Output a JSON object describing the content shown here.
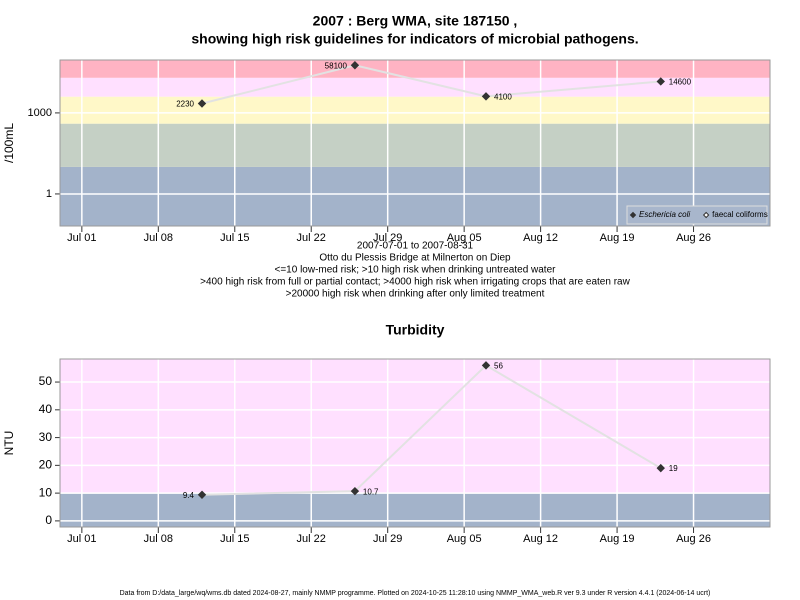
{
  "chart_data": [
    {
      "type": "line",
      "title": "2007 : Berg WMA, site 187150 ,",
      "subtitle": "showing high risk guidelines for indicators of microbial pathogens.",
      "ylabel": "/100mL",
      "log_scale": true,
      "xlim": [
        "2007-06-29",
        "2007-09-02"
      ],
      "xticks": [
        {
          "value": "2007-07-01",
          "label": "Jul 01"
        },
        {
          "value": "2007-07-08",
          "label": "Jul 08"
        },
        {
          "value": "2007-07-15",
          "label": "Jul 15"
        },
        {
          "value": "2007-07-22",
          "label": "Jul 22"
        },
        {
          "value": "2007-07-29",
          "label": "Jul 29"
        },
        {
          "value": "2007-08-05",
          "label": "Aug 05"
        },
        {
          "value": "2007-08-12",
          "label": "Aug 12"
        },
        {
          "value": "2007-08-19",
          "label": "Aug 19"
        },
        {
          "value": "2007-08-26",
          "label": "Aug 26"
        }
      ],
      "ylim": [
        0.065,
        91000
      ],
      "yticks": [
        1,
        1000
      ],
      "grid": true,
      "bands": [
        {
          "to": 10,
          "color": "#a3b3ca"
        },
        {
          "from": 10,
          "to": 400,
          "color": "#c5d0c5"
        },
        {
          "from": 400,
          "to": 4000,
          "color": "#fff8c8"
        },
        {
          "from": 4000,
          "to": 20000,
          "color": "#ffe0ff"
        },
        {
          "from": 20000,
          "color": "#ffb3c3"
        }
      ],
      "x": [
        "2007-07-12",
        "2007-07-26",
        "2007-08-07",
        "2007-08-23"
      ],
      "line_color": "#e2e2e2",
      "series": [
        {
          "name": "Eschericia coli",
          "color": "#333333",
          "marker": "filled",
          "values": [
            2230,
            58100,
            4100,
            14600
          ]
        },
        {
          "name": "faecal coliforms",
          "color": "#333333",
          "marker": "open",
          "values": [
            null,
            null,
            null,
            null
          ]
        }
      ],
      "legend": "bottom right",
      "notes": [
        "2007-07-01 to 2007-08-31",
        "Otto du Plessis Bridge at Milnerton on Diep",
        "<=10 low-med risk; >10 high risk when drinking untreated water",
        ">400 high risk from full or partial contact; >4000 high risk when irrigating crops that are eaten raw",
        ">20000 high risk when drinking after only limited treatment"
      ]
    },
    {
      "type": "line",
      "title": "Turbidity",
      "ylabel": "NTU",
      "log_scale": false,
      "xlim": [
        "2007-06-29",
        "2007-09-02"
      ],
      "xticks": [
        {
          "value": "2007-07-01",
          "label": "Jul 01"
        },
        {
          "value": "2007-07-08",
          "label": "Jul 08"
        },
        {
          "value": "2007-07-15",
          "label": "Jul 15"
        },
        {
          "value": "2007-07-22",
          "label": "Jul 22"
        },
        {
          "value": "2007-07-29",
          "label": "Jul 29"
        },
        {
          "value": "2007-08-05",
          "label": "Aug 05"
        },
        {
          "value": "2007-08-12",
          "label": "Aug 12"
        },
        {
          "value": "2007-08-19",
          "label": "Aug 19"
        },
        {
          "value": "2007-08-26",
          "label": "Aug 26"
        }
      ],
      "ylim": [
        -2.2,
        58.3
      ],
      "yticks": [
        0,
        10,
        20,
        30,
        40,
        50
      ],
      "grid": true,
      "bands": [
        {
          "to": 10,
          "color": "#a3b3ca"
        },
        {
          "from": 10,
          "color": "#ffe0ff"
        }
      ],
      "x": [
        "2007-07-12",
        "2007-07-26",
        "2007-08-07",
        "2007-08-23"
      ],
      "line_color": "#e2e2e2",
      "series": [
        {
          "name": "Turbidity",
          "color": "#333333",
          "marker": "filled",
          "values": [
            9.4,
            10.7,
            56,
            19
          ]
        }
      ]
    }
  ],
  "footer": "Data from D:/data_large/wq/wms.db dated 2024-08-27, mainly NMMP programme. Plotted on 2024-10-25 11:28:10 using NMMP_WMA_web.R ver 9.3 under R version 4.4.1 (2024-06-14 ucrt)"
}
